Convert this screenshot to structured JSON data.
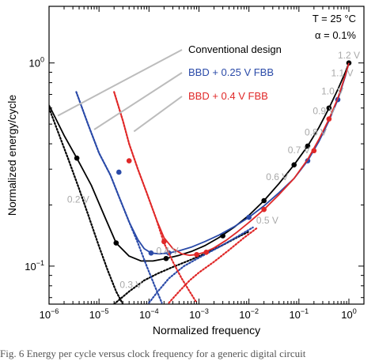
{
  "chart_data": {
    "type": "line",
    "title": "",
    "xlabel": "Normalized frequency",
    "ylabel": "Normalized energy/cycle",
    "x_scale": "log",
    "y_scale": "log",
    "xlim": [
      1e-06,
      2
    ],
    "ylim": [
      0.065,
      1.9
    ],
    "grid": false,
    "x_ticks": [
      {
        "value": 1e-06,
        "base": "10",
        "exp": "−6"
      },
      {
        "value": 1e-05,
        "base": "10",
        "exp": "−5"
      },
      {
        "value": 0.0001,
        "base": "10",
        "exp": "−4"
      },
      {
        "value": 0.001,
        "base": "10",
        "exp": "−3"
      },
      {
        "value": 0.01,
        "base": "10",
        "exp": "−2"
      },
      {
        "value": 0.1,
        "base": "10",
        "exp": "−1"
      },
      {
        "value": 1,
        "base": "10",
        "exp": "0"
      }
    ],
    "y_ticks": [
      {
        "value": 0.1,
        "base": "10",
        "exp": "−1"
      },
      {
        "value": 1,
        "base": "10",
        "exp": "0"
      }
    ],
    "conditions": [
      "T = 25 °C",
      "α = 0.1%"
    ],
    "series": [
      {
        "name": "Conventional design",
        "color": "#000000",
        "total_x": [
          1e-06,
          2e-06,
          3.6e-06,
          7e-06,
          1.3e-05,
          2.2e-05,
          4e-05,
          7e-05,
          0.00012,
          0.00022,
          0.0004,
          0.0007,
          0.0013,
          0.0025,
          0.005,
          0.01,
          0.02,
          0.04,
          0.08,
          0.15,
          0.25,
          0.4,
          0.6,
          0.85,
          1.0
        ],
        "total_y": [
          0.62,
          0.44,
          0.34,
          0.25,
          0.175,
          0.13,
          0.112,
          0.106,
          0.106,
          0.109,
          0.113,
          0.118,
          0.126,
          0.138,
          0.155,
          0.178,
          0.21,
          0.255,
          0.315,
          0.39,
          0.48,
          0.6,
          0.74,
          0.9,
          1.0
        ],
        "points_x": [
          3.6e-06,
          2.2e-05,
          0.00022,
          0.003,
          0.02,
          0.08,
          0.15,
          0.4,
          1.0
        ],
        "points_y": [
          0.34,
          0.13,
          0.109,
          0.141,
          0.21,
          0.315,
          0.39,
          0.6,
          1.0
        ],
        "leakage_x": [
          1e-06,
          1.5e-06,
          2.5e-06,
          4e-06,
          6e-06,
          1e-05,
          1.5e-05,
          2.2e-05,
          3e-05
        ],
        "leakage_y": [
          0.6,
          0.46,
          0.33,
          0.24,
          0.18,
          0.125,
          0.095,
          0.075,
          0.065
        ],
        "dynamic_x": [
          2e-05,
          4e-05,
          8e-05,
          0.00015,
          0.0003,
          0.0006,
          0.0012,
          0.003,
          0.006,
          0.01
        ],
        "dynamic_y": [
          0.065,
          0.075,
          0.085,
          0.092,
          0.099,
          0.106,
          0.114,
          0.127,
          0.139,
          0.148
        ]
      },
      {
        "name": "BBD + 0.25 V FBB",
        "color": "#2a4aa8",
        "total_x": [
          3.5e-06,
          6e-06,
          1e-05,
          1.7e-05,
          2.5e-05,
          4e-05,
          6e-05,
          8e-05,
          0.00011,
          0.00016,
          0.00025,
          0.0004,
          0.0007,
          0.0013,
          0.0025,
          0.005,
          0.01,
          0.02,
          0.04,
          0.08,
          0.15,
          0.25,
          0.4,
          0.6,
          0.85,
          1.0
        ],
        "total_y": [
          0.72,
          0.5,
          0.36,
          0.28,
          0.22,
          0.165,
          0.135,
          0.122,
          0.116,
          0.115,
          0.116,
          0.119,
          0.124,
          0.132,
          0.142,
          0.156,
          0.174,
          0.198,
          0.23,
          0.27,
          0.33,
          0.41,
          0.52,
          0.66,
          0.86,
          1.0
        ],
        "points_x": [
          2.5e-05,
          0.00011,
          0.00025,
          0.01,
          0.15,
          0.6
        ],
        "points_y": [
          0.29,
          0.116,
          0.116,
          0.174,
          0.33,
          0.66
        ],
        "leakage_x": [
          3.5e-06,
          6e-06,
          1e-05,
          1.7e-05,
          2.5e-05,
          4e-05,
          6e-05,
          9e-05,
          0.00013,
          0.00018
        ],
        "leakage_y": [
          0.72,
          0.5,
          0.36,
          0.28,
          0.22,
          0.165,
          0.13,
          0.1,
          0.08,
          0.066
        ],
        "dynamic_x": [
          0.0001,
          0.00015,
          0.00025,
          0.0005,
          0.001,
          0.0025,
          0.006,
          0.012
        ],
        "dynamic_y": [
          0.066,
          0.075,
          0.087,
          0.1,
          0.11,
          0.124,
          0.14,
          0.155
        ]
      },
      {
        "name": "BBD + 0.4 V FBB",
        "color": "#e02828",
        "total_x": [
          2e-05,
          3e-05,
          4e-05,
          6e-05,
          9e-05,
          0.00014,
          0.0002,
          0.0003,
          0.00045,
          0.00065,
          0.0009,
          0.0013,
          0.002,
          0.0035,
          0.006,
          0.01,
          0.02,
          0.04,
          0.08,
          0.15,
          0.25,
          0.4,
          0.6,
          0.85,
          1.0
        ],
        "total_y": [
          0.72,
          0.52,
          0.4,
          0.3,
          0.23,
          0.17,
          0.138,
          0.122,
          0.115,
          0.113,
          0.114,
          0.117,
          0.123,
          0.134,
          0.148,
          0.164,
          0.19,
          0.225,
          0.27,
          0.335,
          0.42,
          0.53,
          0.67,
          0.87,
          1.0
        ],
        "points_x": [
          4e-05,
          0.0002,
          0.0009,
          0.0014,
          0.02,
          0.2,
          0.4
        ],
        "points_y": [
          0.33,
          0.132,
          0.114,
          0.117,
          0.19,
          0.37,
          0.53
        ],
        "leakage_x": [
          2e-05,
          3e-05,
          4e-05,
          6e-05,
          9e-05,
          0.00014,
          0.0002,
          0.0003,
          0.00045,
          0.00065,
          0.0009
        ],
        "leakage_y": [
          0.72,
          0.52,
          0.4,
          0.3,
          0.23,
          0.17,
          0.13,
          0.105,
          0.087,
          0.075,
          0.066
        ],
        "dynamic_x": [
          0.00025,
          0.0004,
          0.00065,
          0.001,
          0.002,
          0.004,
          0.008,
          0.015
        ],
        "dynamic_y": [
          0.066,
          0.075,
          0.085,
          0.093,
          0.105,
          0.12,
          0.138,
          0.155
        ]
      }
    ],
    "legend": {
      "placement": "top-center"
    },
    "voltage_labels": [
      {
        "text": "0.2 V",
        "x": 2.3e-06,
        "y": 0.205
      },
      {
        "text": "0.3 V",
        "x": 2.6e-05,
        "y": 0.078
      },
      {
        "text": "0.4 V",
        "x": 0.00014,
        "y": 0.115
      },
      {
        "text": "0.5 V",
        "x": 0.014,
        "y": 0.162
      },
      {
        "text": "0.6 V",
        "x": 0.022,
        "y": 0.265
      },
      {
        "text": "0.7 V",
        "x": 0.06,
        "y": 0.36
      },
      {
        "text": "0.8 V",
        "x": 0.13,
        "y": 0.44
      },
      {
        "text": "0.9 V",
        "x": 0.19,
        "y": 0.56
      },
      {
        "text": "1.0 V",
        "x": 0.28,
        "y": 0.7
      },
      {
        "text": "1.1 V",
        "x": 0.44,
        "y": 0.86
      },
      {
        "text": "1.2 V",
        "x": 0.6,
        "y": 1.05
      }
    ]
  },
  "caption": "Fig. 6    Energy per cycle versus clock frequency for a generic digital circuit"
}
